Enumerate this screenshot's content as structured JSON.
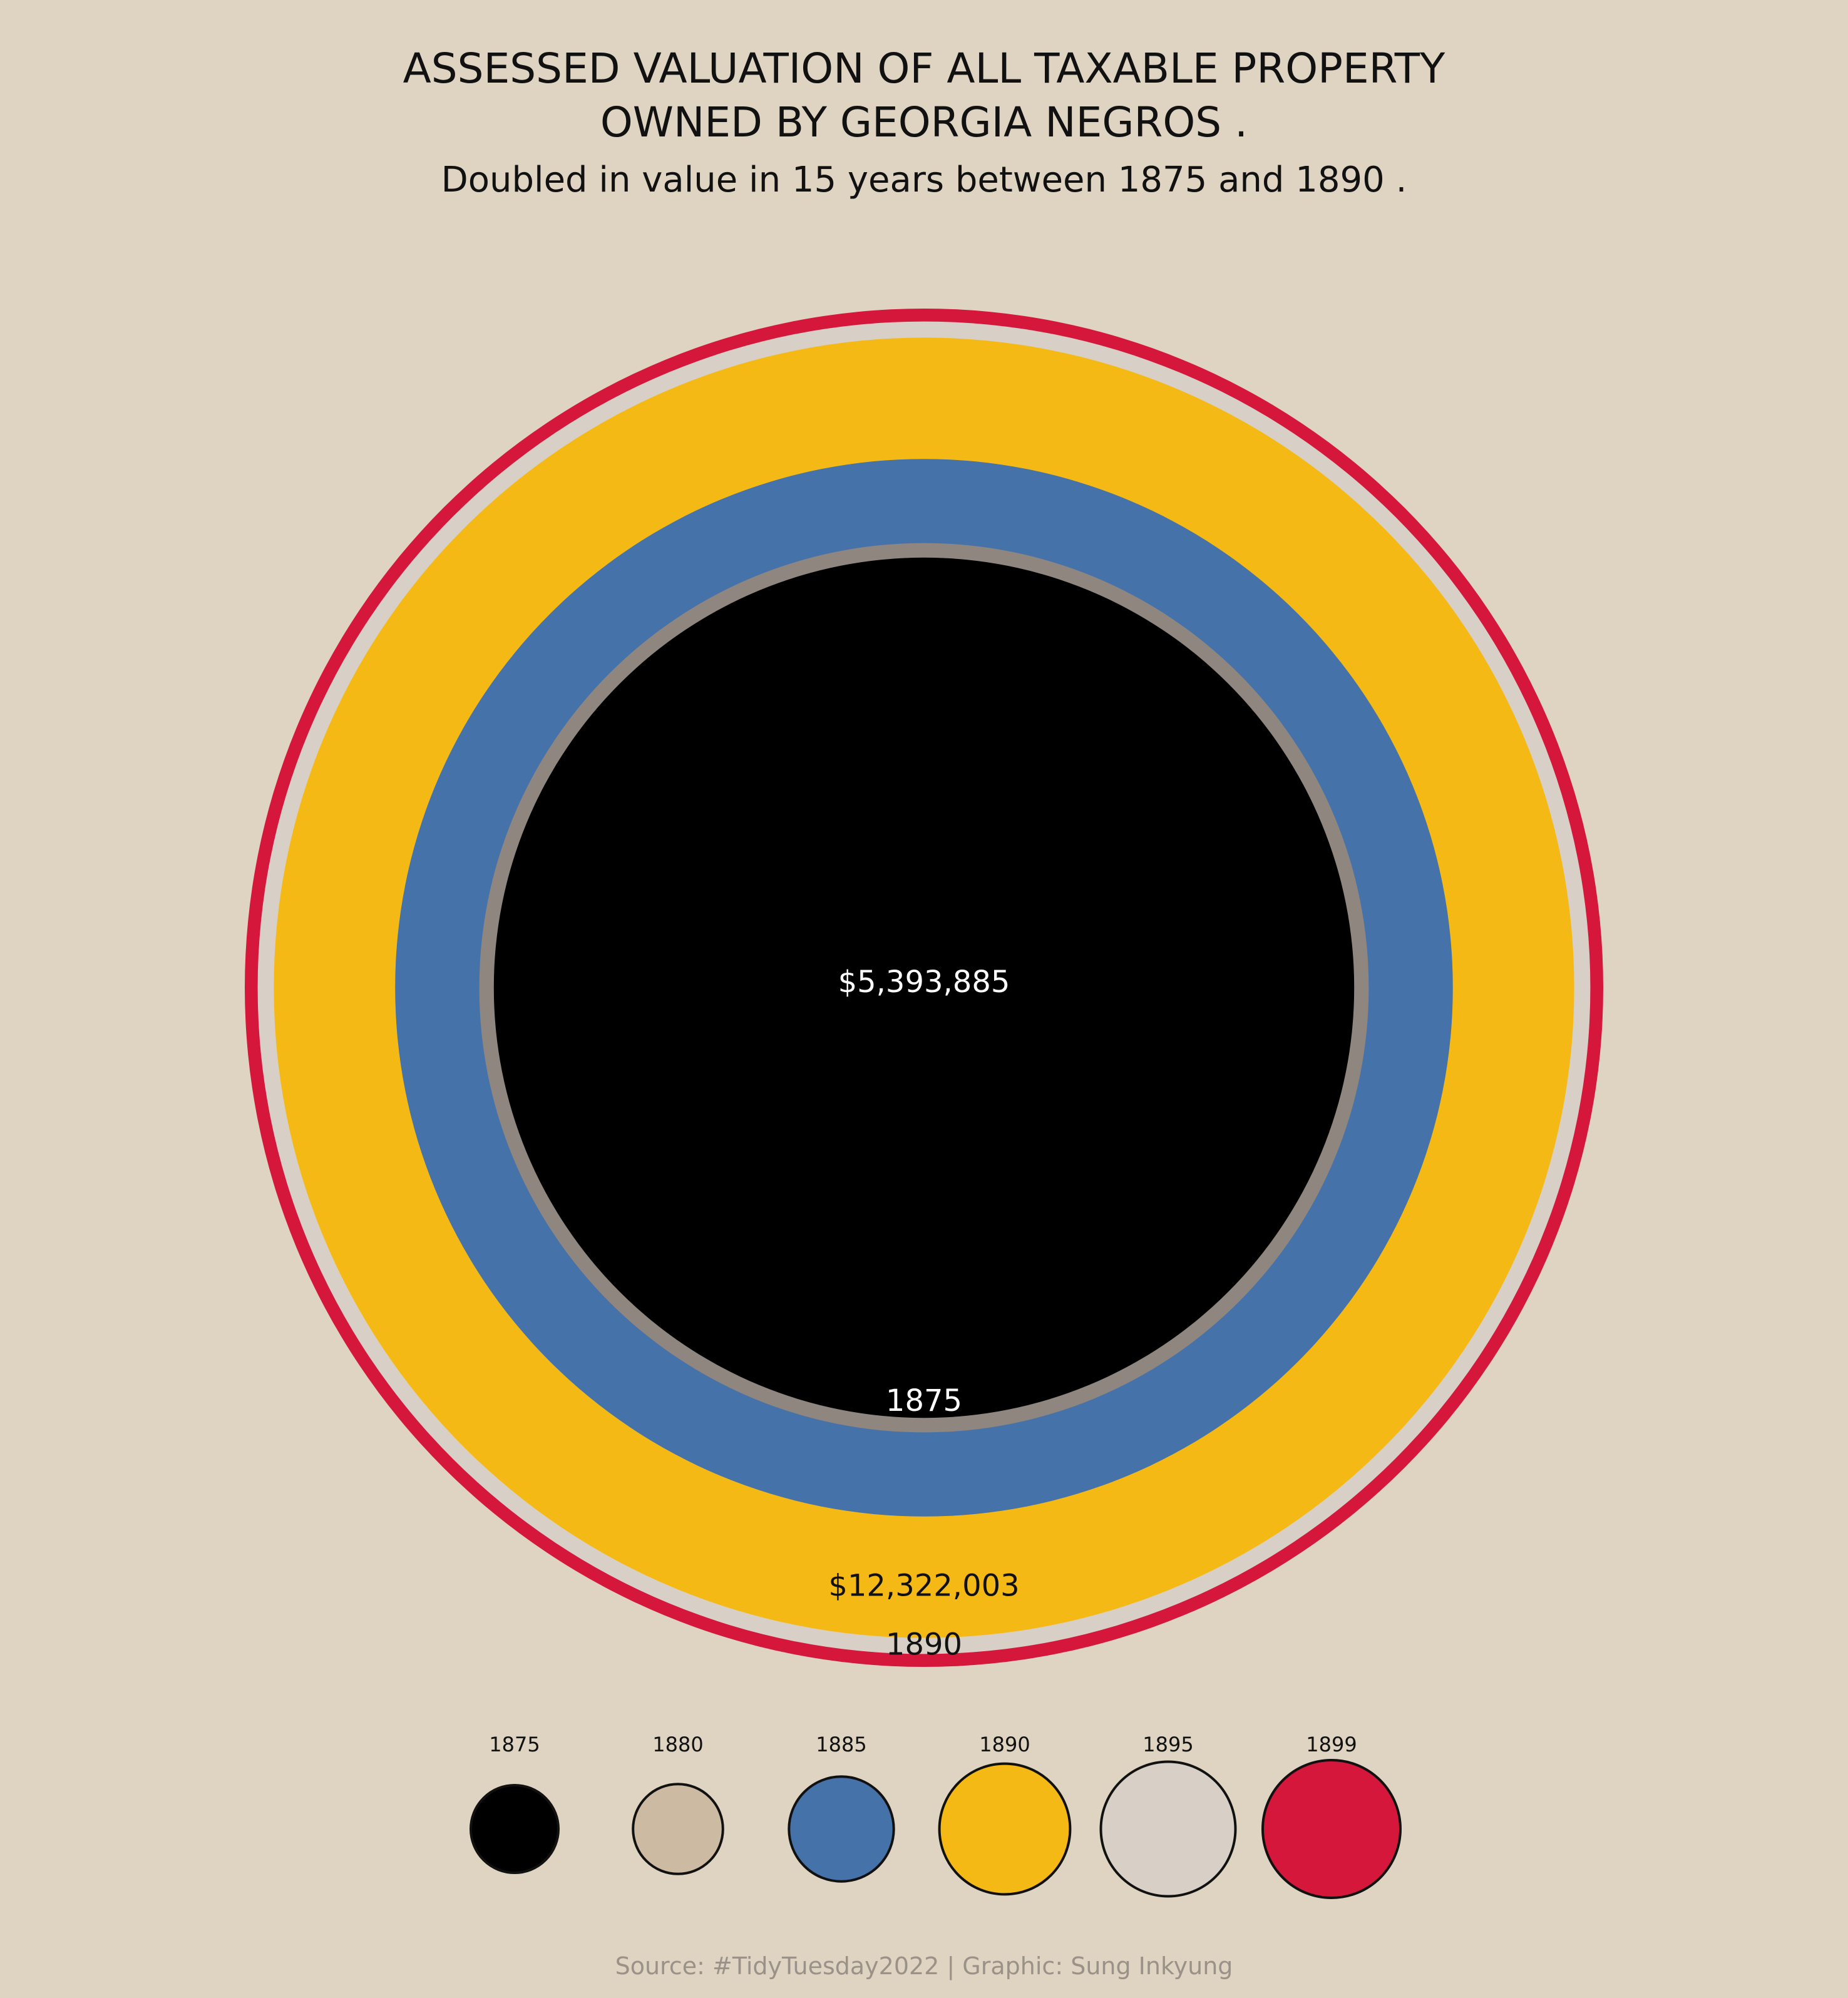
{
  "title_line1": "ASSESSED VALUATION OF ALL TAXABLE PROPERTY",
  "title_line2": "OWNED BY GEORGIA NEGROS .",
  "subtitle": "Doubled in value in 15 years between 1875 and 1890 .",
  "source": "Source: #TidyTuesday2022 | Graphic: Sung Inkyung",
  "colors": {
    "background": "#dfd3c1",
    "text": "#111111",
    "source_text": "#9a9288",
    "ring_outline": "#111111"
  },
  "chart_data": {
    "type": "nested-circles",
    "title": "ASSESSED VALUATION OF ALL TAXABLE PROPERTY OWNED BY GEORGIA NEGROS .",
    "subtitle": "Doubled in value in 15 years between 1875 and 1890 .",
    "series": [
      {
        "year": "1875",
        "value": 5393885,
        "color": "#000000"
      },
      {
        "year": "1880",
        "value": 5764293,
        "color": "#8f8680",
        "legend_color": "#ccbba2"
      },
      {
        "year": "1885",
        "value": 8153390,
        "color": "#4672aa"
      },
      {
        "year": "1890",
        "value": 12322003,
        "color": "#f5b915"
      },
      {
        "year": "1895",
        "value": 12941230,
        "color": "#d8d0c6"
      },
      {
        "year": "1899",
        "value": 13447423,
        "color": "#d4173a"
      }
    ],
    "labels": [
      {
        "text": "$5,393,885",
        "year": "1875",
        "color": "#ffffff"
      },
      {
        "text": "1875",
        "year": "1875",
        "color": "#ffffff"
      },
      {
        "text": "$12,322,003",
        "year": "1890",
        "color": "#111111"
      },
      {
        "text": "1890",
        "year": "1890",
        "color": "#111111"
      }
    ],
    "legend": {
      "position": "bottom",
      "entries": [
        "1875",
        "1880",
        "1885",
        "1890",
        "1895",
        "1899"
      ]
    }
  }
}
